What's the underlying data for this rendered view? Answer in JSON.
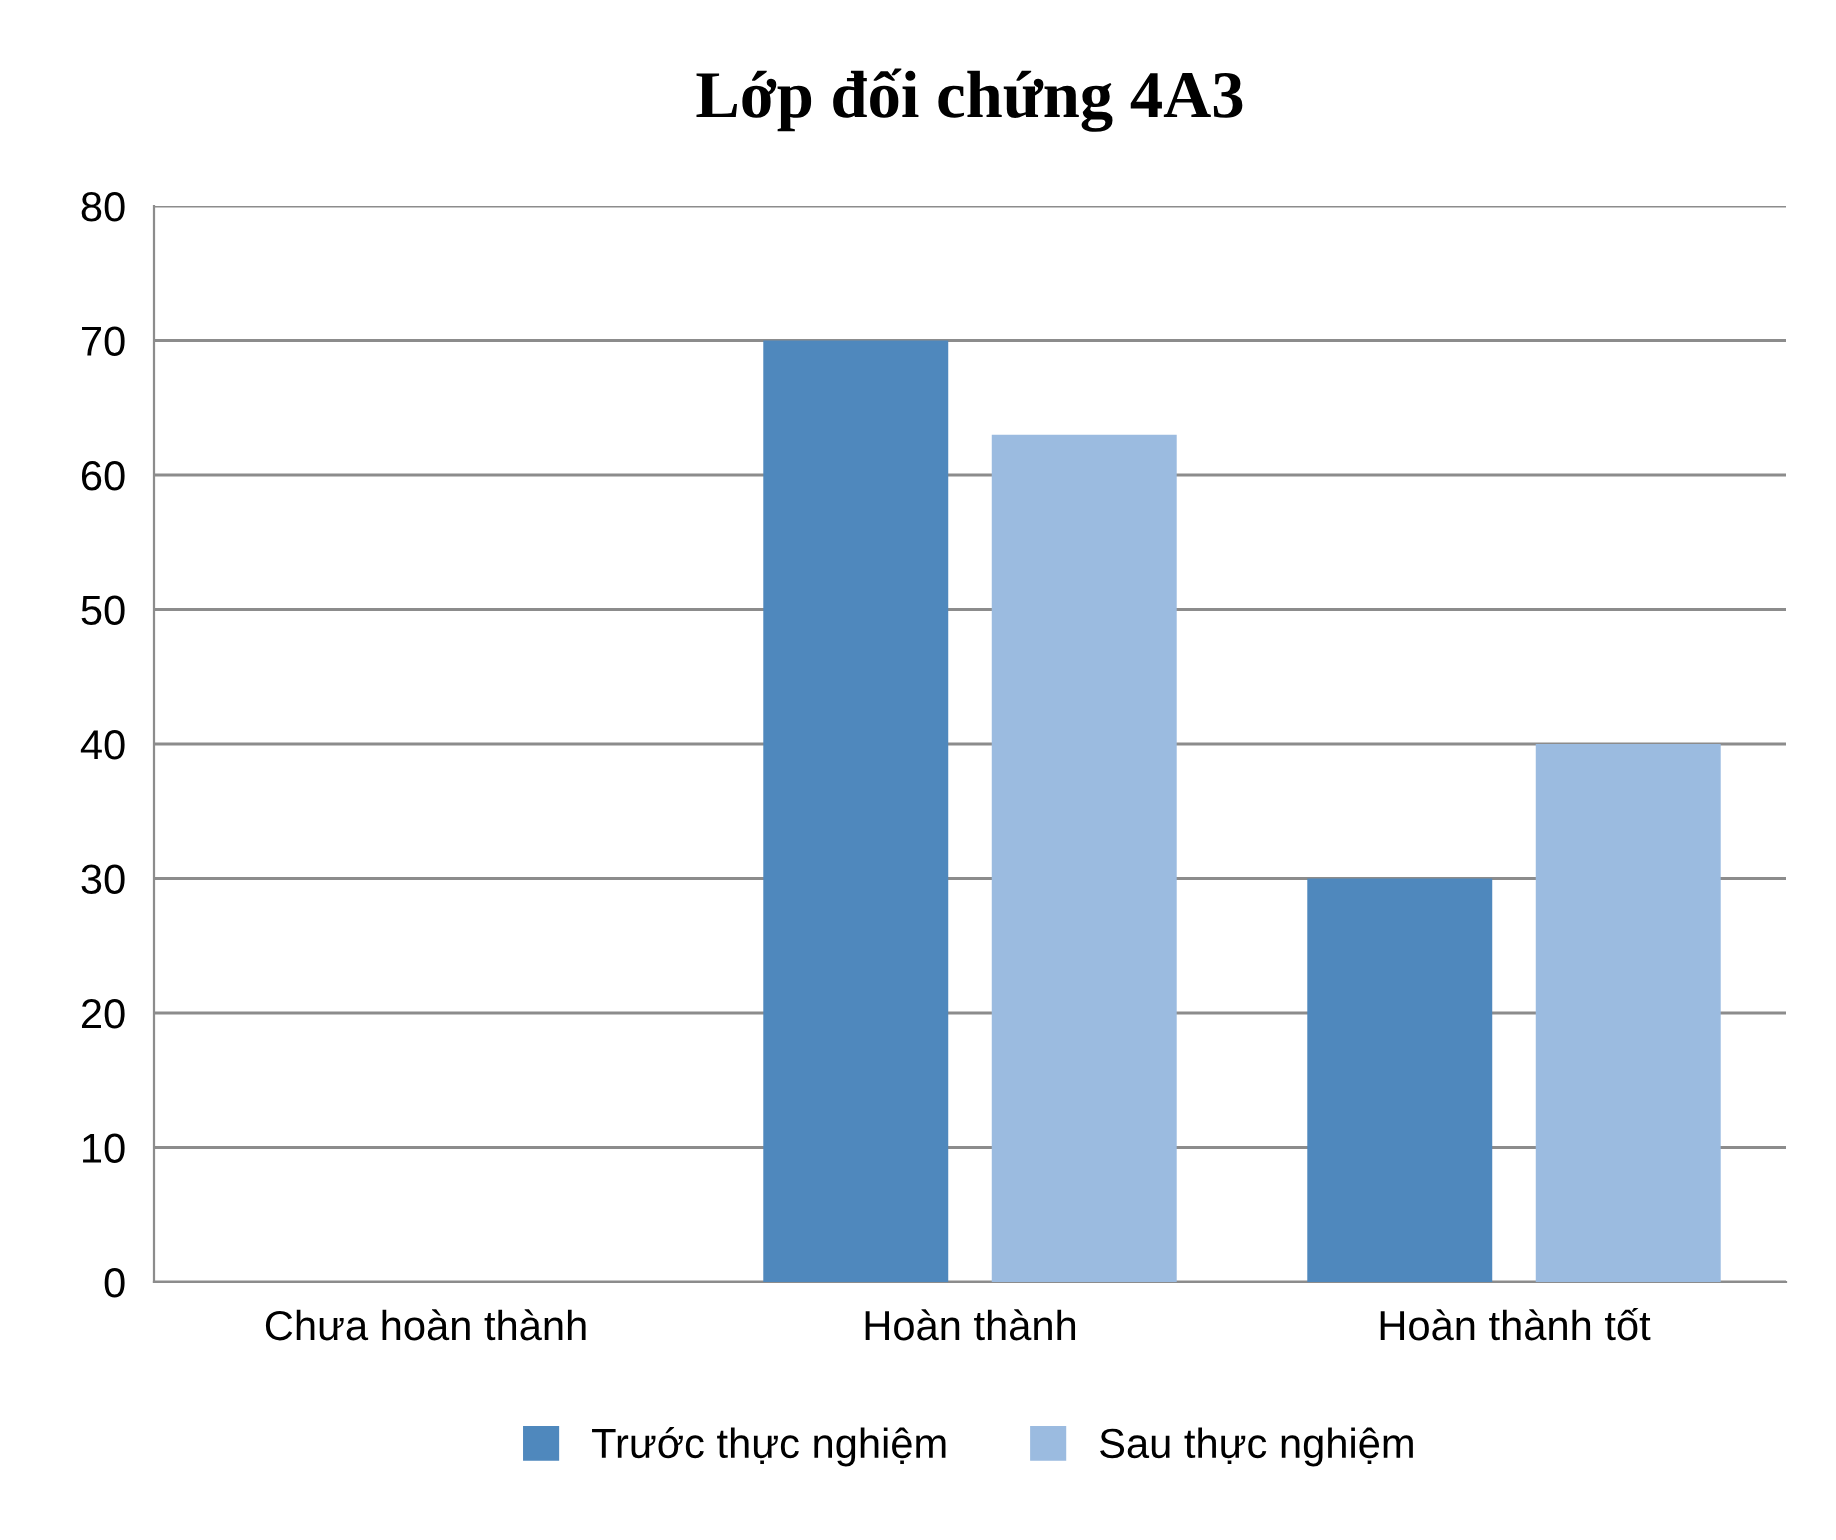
{
  "chart_data": {
    "type": "bar",
    "title": "Lớp đối chứng 4A3",
    "categories": [
      "Chưa hoàn thành",
      "Hoàn thành",
      "Hoàn thành tốt"
    ],
    "series": [
      {
        "name": "Trước thực nghiệm",
        "color": "#4f88bd",
        "values": [
          0,
          70,
          30
        ]
      },
      {
        "name": "Sau thực nghiệm",
        "color": "#9bbbe0",
        "values": [
          0,
          63,
          40
        ]
      }
    ],
    "ylim": [
      0,
      80
    ],
    "yticks": [
      0,
      10,
      20,
      30,
      40,
      50,
      60,
      70,
      80
    ],
    "grid": "y",
    "legend": "bottom"
  }
}
